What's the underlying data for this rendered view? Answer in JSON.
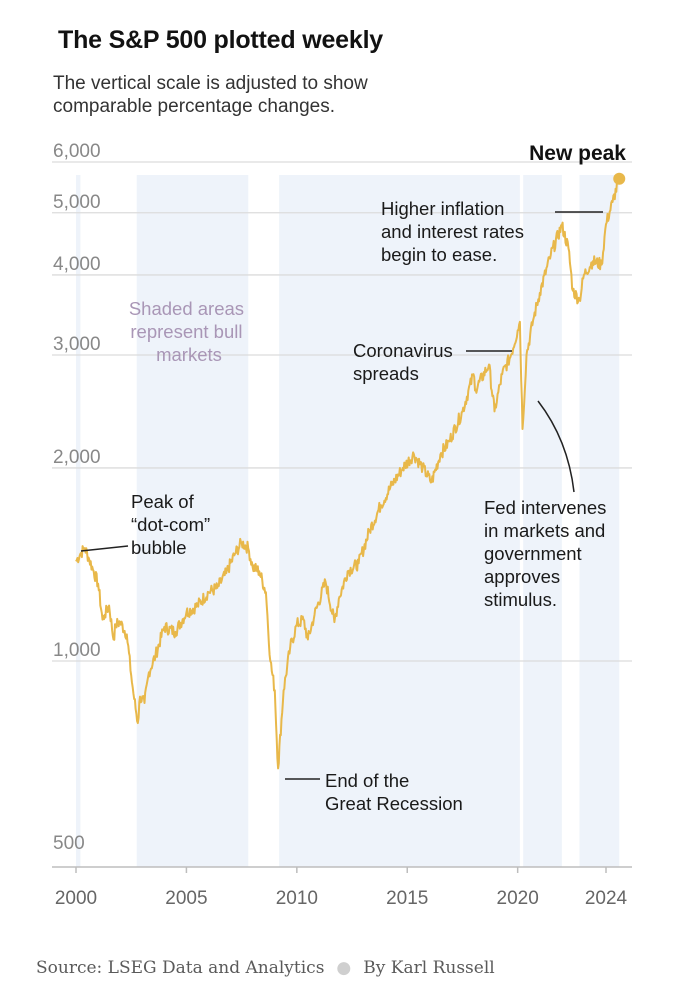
{
  "title": "The S&P 500 plotted weekly",
  "subtitle": "The vertical scale is adjusted to show comparable percentage changes.",
  "source": {
    "text": "Source: LSEG Data and Analytics",
    "byline": "By Karl Russell"
  },
  "chart_data": {
    "type": "line",
    "scale": "log",
    "xlim": [
      2000,
      2024.6
    ],
    "ylim": [
      470,
      6300
    ],
    "yticks": [
      500,
      1000,
      2000,
      3000,
      4000,
      5000,
      6000
    ],
    "ytick_labels": [
      "500",
      "1,000",
      "2,000",
      "3,000",
      "4,000",
      "5,000",
      "6,000"
    ],
    "xticks": [
      2000,
      2005,
      2010,
      2015,
      2020,
      2024
    ],
    "xtick_labels": [
      "2000",
      "2005",
      "2010",
      "2015",
      "2020",
      "2024"
    ],
    "grid": true,
    "line_color": "#e8b84a",
    "shade_color": "#eef3fa",
    "bull_markets": [
      [
        2000,
        2000.2
      ],
      [
        2002.75,
        2007.8
      ],
      [
        2009.2,
        2020.1
      ],
      [
        2020.25,
        2022.0
      ],
      [
        2022.8,
        2024.6
      ]
    ],
    "series": [
      {
        "x": [
          2000.0,
          2000.2,
          2000.4,
          2000.6,
          2000.8,
          2001.0,
          2001.2,
          2001.3,
          2001.5,
          2001.7,
          2001.8,
          2002.0,
          2002.3,
          2002.5,
          2002.6,
          2002.8,
          2002.9,
          2003.1,
          2003.3,
          2003.6,
          2004.0,
          2004.5,
          2005.0,
          2005.5,
          2006.0,
          2006.4,
          2006.8,
          2007.2,
          2007.5,
          2007.8,
          2008.0,
          2008.3,
          2008.6,
          2008.8,
          2009.0,
          2009.15,
          2009.4,
          2009.7,
          2010.0,
          2010.3,
          2010.5,
          2010.8,
          2011.3,
          2011.7,
          2011.9,
          2012.3,
          2012.8,
          2013.3,
          2013.8,
          2014.3,
          2014.8,
          2015.3,
          2015.7,
          2016.1,
          2016.5,
          2016.9,
          2017.5,
          2018.0,
          2018.1,
          2018.7,
          2018.95,
          2019.3,
          2019.7,
          2020.0,
          2020.1,
          2020.22,
          2020.4,
          2020.7,
          2021.0,
          2021.5,
          2022.0,
          2022.3,
          2022.5,
          2022.8,
          2023.0,
          2023.4,
          2023.8,
          2024.0,
          2024.3,
          2024.6
        ],
        "y": [
          1430,
          1470,
          1500,
          1440,
          1380,
          1320,
          1160,
          1180,
          1220,
          1080,
          1140,
          1150,
          1100,
          950,
          890,
          800,
          880,
          860,
          960,
          1020,
          1130,
          1110,
          1190,
          1220,
          1280,
          1300,
          1370,
          1470,
          1530,
          1500,
          1400,
          1380,
          1280,
          1000,
          900,
          680,
          900,
          1050,
          1140,
          1160,
          1080,
          1180,
          1330,
          1150,
          1250,
          1380,
          1420,
          1600,
          1750,
          1880,
          2000,
          2100,
          2000,
          1900,
          2100,
          2200,
          2450,
          2800,
          2650,
          2900,
          2450,
          2800,
          3000,
          3280,
          3380,
          2300,
          3000,
          3400,
          3750,
          4300,
          4780,
          4400,
          3780,
          3650,
          4000,
          4200,
          4150,
          4800,
          5200,
          5650
        ]
      }
    ],
    "annotations": {
      "new_peak": "New peak",
      "shaded": [
        "Shaded areas",
        "represent bull",
        "markets"
      ],
      "dotcom": [
        "Peak of",
        "“dot-com”",
        "bubble"
      ],
      "recession": [
        "End of the",
        "Great Recession"
      ],
      "corona": [
        "Coronavirus",
        "spreads"
      ],
      "inflation": [
        "Higher inflation",
        "and interest rates",
        "begin to ease."
      ],
      "fed": [
        "Fed intervenes",
        "in markets and",
        "government",
        "approves",
        "stimulus."
      ]
    }
  }
}
